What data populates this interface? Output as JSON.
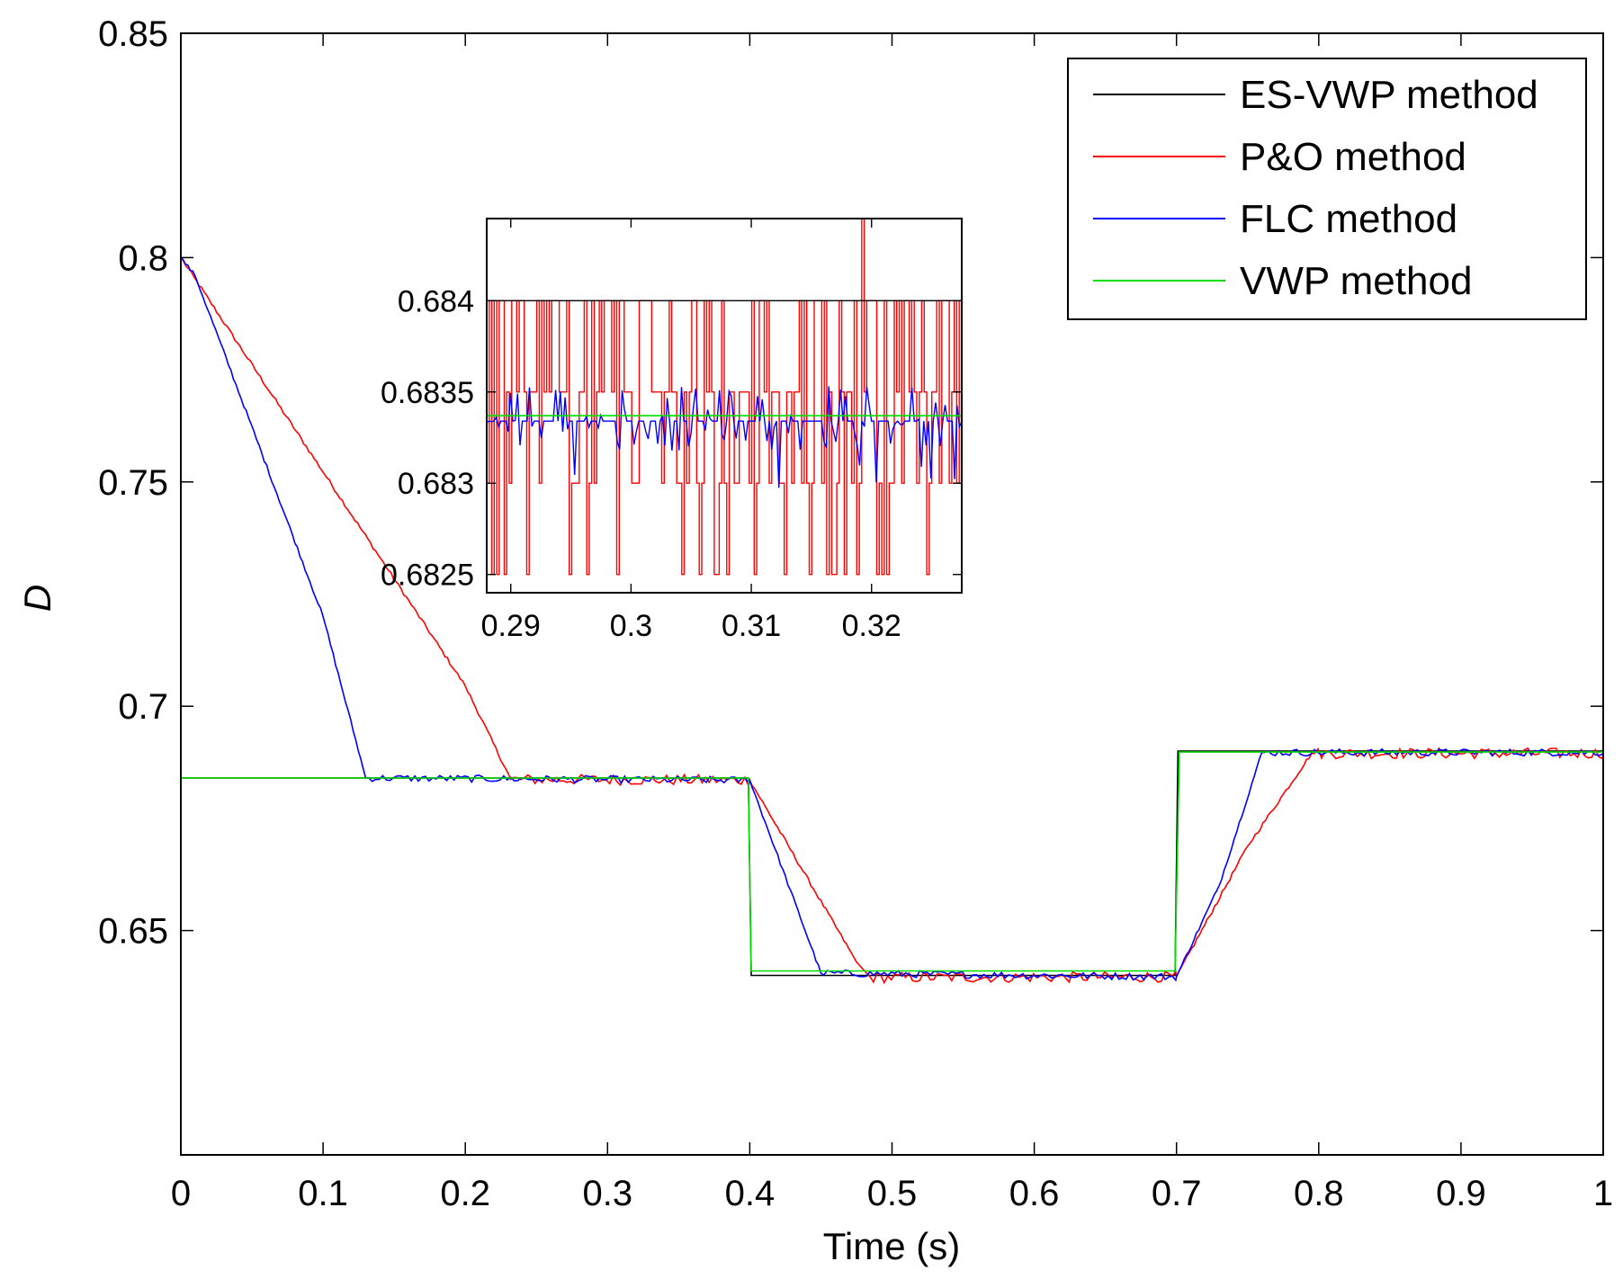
{
  "chart_data": {
    "type": "line",
    "title": "",
    "xlabel": "Time (s)",
    "ylabel": "D",
    "xlim": [
      0,
      1
    ],
    "ylim": [
      0.6,
      0.85
    ],
    "xticks": [
      0,
      0.1,
      0.2,
      0.3,
      0.4,
      0.5,
      0.6,
      0.7,
      0.8,
      0.9,
      1
    ],
    "yticks": [
      0.65,
      0.7,
      0.75,
      0.8,
      0.85
    ],
    "xtick_labels": [
      "0",
      "0.1",
      "0.2",
      "0.3",
      "0.4",
      "0.5",
      "0.6",
      "0.7",
      "0.8",
      "0.9",
      "1"
    ],
    "ytick_labels": [
      "0.65",
      "0.7",
      "0.75",
      "0.8",
      "0.85"
    ],
    "grid": false,
    "legend_position": "top-right",
    "series": [
      {
        "name": "ES-VWP method",
        "color": "#000000",
        "points": [
          [
            0,
            0.684
          ],
          [
            0.399,
            0.684
          ],
          [
            0.401,
            0.64
          ],
          [
            0.699,
            0.64
          ],
          [
            0.701,
            0.69
          ],
          [
            1,
            0.69
          ]
        ]
      },
      {
        "name": "P&O method",
        "color": "#ff0000",
        "points": [
          [
            0,
            0.8
          ],
          [
            0.2,
            0.7045
          ],
          [
            0.232,
            0.6837
          ],
          [
            0.4,
            0.6835
          ],
          [
            0.475,
            0.643
          ],
          [
            0.485,
            0.6395
          ],
          [
            0.7,
            0.6397
          ],
          [
            0.75,
            0.6688
          ],
          [
            0.795,
            0.6895
          ],
          [
            1,
            0.6895
          ]
        ],
        "ripple": [
          [
            0.232,
            0.4,
            0.0012
          ],
          [
            0.485,
            0.7,
            0.0012
          ],
          [
            0.795,
            1.0,
            0.0012
          ]
        ]
      },
      {
        "name": "FLC method",
        "color": "#0000ff",
        "points": [
          [
            0,
            0.8
          ],
          [
            0.01,
            0.796
          ],
          [
            0.1,
            0.72
          ],
          [
            0.13,
            0.684
          ],
          [
            0.4,
            0.6835
          ],
          [
            0.45,
            0.6405
          ],
          [
            0.7,
            0.6397
          ],
          [
            0.73,
            0.66
          ],
          [
            0.76,
            0.6897
          ],
          [
            1,
            0.6897
          ]
        ],
        "ripple": [
          [
            0.13,
            0.4,
            0.0008
          ],
          [
            0.45,
            0.7,
            0.0008
          ],
          [
            0.76,
            1.0,
            0.0008
          ]
        ]
      },
      {
        "name": "VWP method",
        "color": "#00dd00",
        "points": [
          [
            0,
            0.684
          ],
          [
            0.399,
            0.684
          ],
          [
            0.401,
            0.641
          ],
          [
            0.699,
            0.641
          ],
          [
            0.702,
            0.6898
          ],
          [
            1,
            0.6898
          ]
        ]
      }
    ],
    "inset": {
      "xlim": [
        0.288,
        0.3275
      ],
      "ylim": [
        0.6824,
        0.68445
      ],
      "xticks": [
        0.29,
        0.3,
        0.31,
        0.32
      ],
      "yticks": [
        0.6825,
        0.683,
        0.6835,
        0.684
      ],
      "xtick_labels": [
        "0.29",
        "0.3",
        "0.31",
        "0.32"
      ],
      "ytick_labels": [
        "0.6825",
        "0.683",
        "0.6835",
        "0.684"
      ],
      "series": [
        {
          "name": "ES-VWP method",
          "color": "#000000",
          "level": 0.684
        },
        {
          "name": "P&O method",
          "color": "#ff0000",
          "levels": [
            0.6825,
            0.683,
            0.6835,
            0.684,
            0.6845
          ],
          "base": 0.6835
        },
        {
          "name": "FLC method",
          "color": "#0000ff",
          "center": 0.68334,
          "amplitude": 0.00018
        },
        {
          "name": "VWP method",
          "color": "#00dd00",
          "level": 0.68337
        }
      ]
    }
  }
}
